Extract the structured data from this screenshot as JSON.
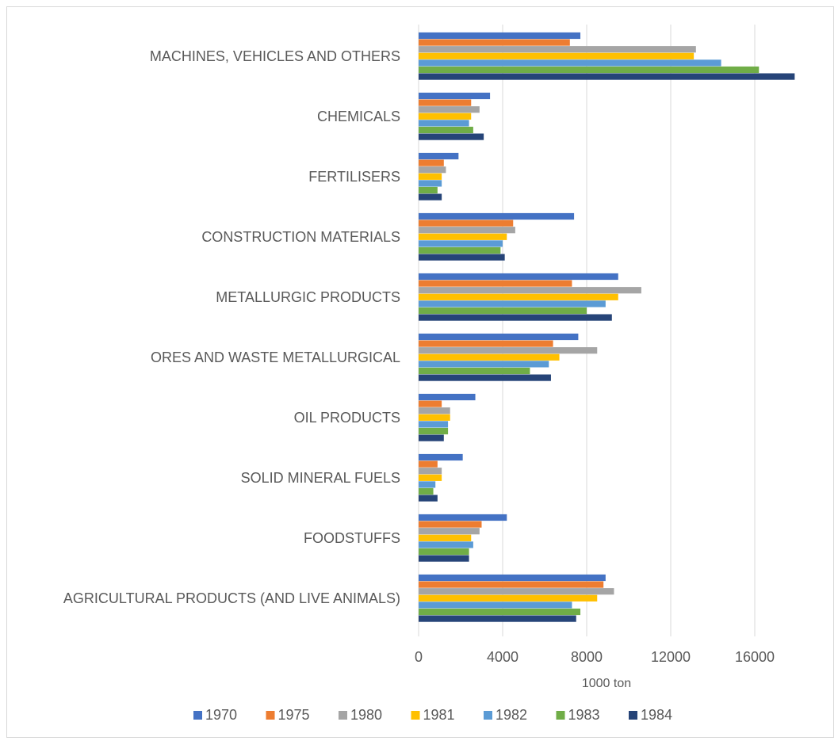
{
  "chart_data": {
    "type": "bar",
    "orientation": "horizontal",
    "xlabel": "1000 ton",
    "xlim": [
      0,
      18000
    ],
    "xticks": [
      0,
      4000,
      8000,
      12000,
      16000
    ],
    "grid": true,
    "legend_position": "bottom",
    "categories": [
      "MACHINES, VEHICLES AND OTHERS",
      "CHEMICALS",
      "FERTILISERS",
      "CONSTRUCTION MATERIALS",
      "METALLURGIC PRODUCTS",
      "ORES AND WASTE METALLURGICAL",
      "OIL PRODUCTS",
      "SOLID MINERAL FUELS",
      "FOODSTUFFS",
      "AGRICULTURAL PRODUCTS (AND LIVE ANIMALS)"
    ],
    "series": [
      {
        "name": "1970",
        "color": "#4472c4",
        "values": [
          7700,
          3400,
          1900,
          7400,
          9500,
          7600,
          2700,
          2100,
          4200,
          8900
        ]
      },
      {
        "name": "1975",
        "color": "#ed7d31",
        "values": [
          7200,
          2500,
          1200,
          4500,
          7300,
          6400,
          1100,
          900,
          3000,
          8800
        ]
      },
      {
        "name": "1980",
        "color": "#a5a5a5",
        "values": [
          13200,
          2900,
          1300,
          4600,
          10600,
          8500,
          1500,
          1100,
          2900,
          9300
        ]
      },
      {
        "name": "1981",
        "color": "#ffc000",
        "values": [
          13100,
          2500,
          1100,
          4200,
          9500,
          6700,
          1500,
          1100,
          2500,
          8500
        ]
      },
      {
        "name": "1982",
        "color": "#5b9bd5",
        "values": [
          14400,
          2400,
          1100,
          4000,
          8900,
          6200,
          1400,
          800,
          2600,
          7300
        ]
      },
      {
        "name": "1983",
        "color": "#70ad47",
        "values": [
          16200,
          2600,
          900,
          3900,
          8000,
          5300,
          1400,
          700,
          2400,
          7700
        ]
      },
      {
        "name": "1984",
        "color": "#264478",
        "values": [
          17900,
          3100,
          1100,
          4100,
          9200,
          6300,
          1200,
          900,
          2400,
          7500
        ]
      }
    ]
  }
}
